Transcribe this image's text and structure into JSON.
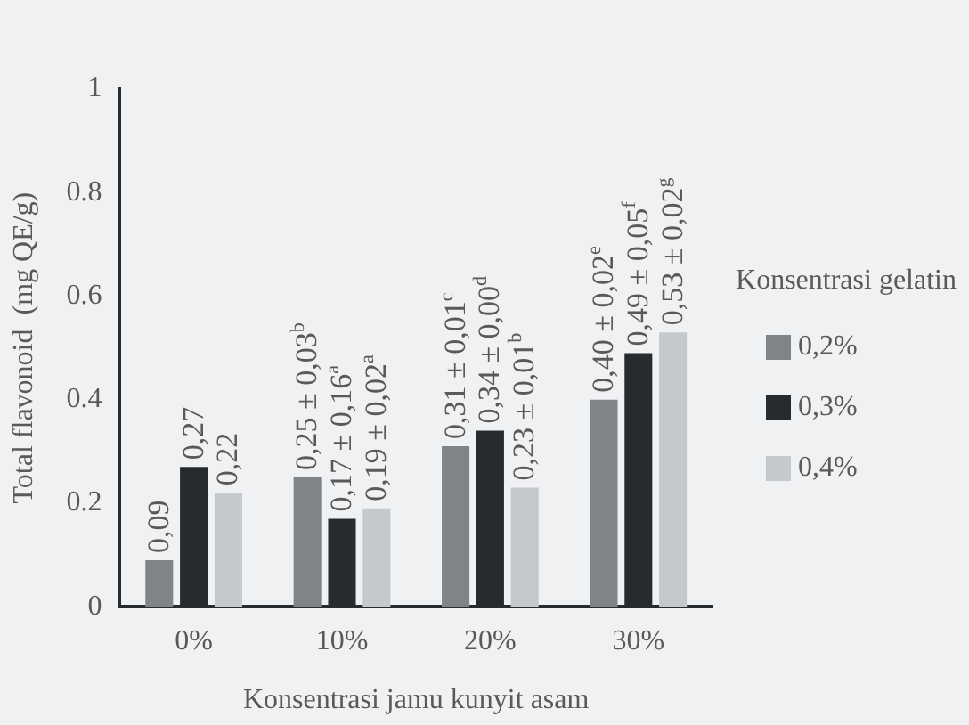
{
  "chart_data": {
    "type": "bar",
    "xlabel": "Konsentrasi jamu kunyit asam",
    "ylabel": "Total flavonoid  (mg QE/g)",
    "legend_title": "Konsentrasi gelatin",
    "legend": "right",
    "grid": false,
    "categories": [
      "0%",
      "10%",
      "20%",
      "30%"
    ],
    "ylim": [
      0,
      1
    ],
    "yticks": [
      0,
      0.2,
      0.4,
      0.6,
      0.8,
      1
    ],
    "series": [
      {
        "name": "0,2%",
        "color": "#7f8489",
        "values": [
          0.09,
          0.25,
          0.31,
          0.4
        ],
        "value_labels": [
          "0,09",
          "0,25 ± 0,03$^{b}$",
          "0,31 ± 0,01$^{c}$",
          "0,40 ± 0,02$^{e}$"
        ]
      },
      {
        "name": "0,3%",
        "color": "#262b30",
        "values": [
          0.27,
          0.17,
          0.34,
          0.49
        ],
        "value_labels": [
          "0,27",
          "0,17 ± 0,16$^{a}$",
          "0,34 ± 0,00$^{d}$",
          "0,49 ± 0,05$^{f}$"
        ]
      },
      {
        "name": "0,4%",
        "color": "#c5c9cd",
        "values": [
          0.22,
          0.19,
          0.23,
          0.53
        ],
        "value_labels": [
          "0,22",
          "0,19 ± 0,02$^{a}$",
          "0,23 ± 0,01$^{b}$",
          "0,53 ± 0,02$^{g}$"
        ]
      }
    ]
  }
}
